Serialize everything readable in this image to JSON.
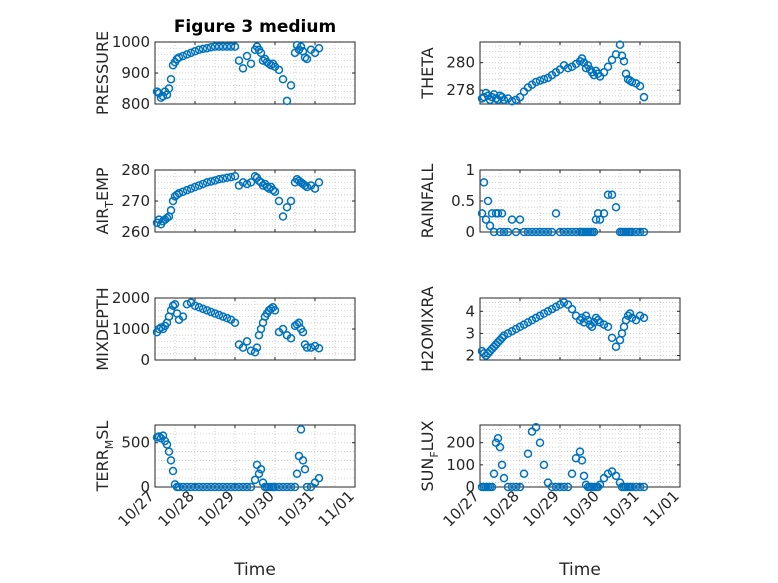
{
  "colors": {
    "marker": "#0072bd",
    "axis": "#262626",
    "grid": "#c8c8c8"
  },
  "chart_data": [
    {
      "type": "scatter",
      "title": "Figure 3 medium",
      "ylabel": "PRESSURE",
      "xlabel": "",
      "xlim": [
        0,
        5
      ],
      "ylim": [
        800,
        1000
      ],
      "yticks": [
        800,
        900,
        1000
      ],
      "xticks": [],
      "x": [
        0.05,
        0.1,
        0.15,
        0.2,
        0.25,
        0.3,
        0.35,
        0.4,
        0.45,
        0.5,
        0.55,
        0.6,
        0.7,
        0.8,
        0.9,
        1.0,
        1.1,
        1.2,
        1.3,
        1.4,
        1.5,
        1.6,
        1.7,
        1.8,
        1.9,
        2.0,
        2.1,
        2.2,
        2.3,
        2.4,
        2.5,
        2.55,
        2.6,
        2.65,
        2.7,
        2.75,
        2.8,
        2.85,
        2.9,
        2.95,
        3.0,
        3.1,
        3.2,
        3.3,
        3.4,
        3.5,
        3.55,
        3.6,
        3.65,
        3.7,
        3.75,
        3.8,
        3.9,
        4.0,
        4.1
      ],
      "y": [
        840,
        835,
        820,
        825,
        840,
        830,
        850,
        880,
        925,
        935,
        945,
        950,
        955,
        960,
        965,
        970,
        975,
        978,
        980,
        983,
        985,
        985,
        985,
        985,
        985,
        985,
        940,
        915,
        955,
        930,
        975,
        985,
        975,
        965,
        940,
        945,
        935,
        930,
        925,
        930,
        920,
        910,
        880,
        810,
        860,
        965,
        990,
        975,
        985,
        970,
        950,
        945,
        975,
        965,
        980
      ]
    },
    {
      "type": "scatter",
      "title": "",
      "ylabel": "THETA",
      "xlabel": "",
      "xlim": [
        0,
        5
      ],
      "ylim": [
        277,
        281.5
      ],
      "yticks": [
        278,
        280
      ],
      "xticks": [],
      "x": [
        0.05,
        0.1,
        0.15,
        0.2,
        0.25,
        0.3,
        0.35,
        0.4,
        0.45,
        0.5,
        0.55,
        0.6,
        0.7,
        0.8,
        0.9,
        1.0,
        1.1,
        1.2,
        1.3,
        1.4,
        1.5,
        1.6,
        1.7,
        1.8,
        1.9,
        2.0,
        2.1,
        2.2,
        2.3,
        2.4,
        2.5,
        2.55,
        2.6,
        2.65,
        2.7,
        2.75,
        2.8,
        2.85,
        2.9,
        2.95,
        3.0,
        3.1,
        3.2,
        3.3,
        3.4,
        3.5,
        3.55,
        3.6,
        3.65,
        3.7,
        3.75,
        3.8,
        3.9,
        4.0,
        4.1
      ],
      "y": [
        277.4,
        277.5,
        277.8,
        277.6,
        277.3,
        277.5,
        277.7,
        277.4,
        277.3,
        277.6,
        277.5,
        277.3,
        277.4,
        277.2,
        277.3,
        277.5,
        277.9,
        278.2,
        278.4,
        278.6,
        278.7,
        278.8,
        278.9,
        279.1,
        279.3,
        279.5,
        279.8,
        279.6,
        279.7,
        279.9,
        280.1,
        280.3,
        280.0,
        279.6,
        279.8,
        279.5,
        279.3,
        279.1,
        279.4,
        279.2,
        279.0,
        279.3,
        279.7,
        280.2,
        280.6,
        281.3,
        280.5,
        280.1,
        279.2,
        278.8,
        278.7,
        278.6,
        278.5,
        278.3,
        277.5
      ]
    },
    {
      "type": "scatter",
      "title": "",
      "ylabel": "AIR_TEMP",
      "xlabel": "",
      "xlim": [
        0,
        5
      ],
      "ylim": [
        260,
        280
      ],
      "yticks": [
        260,
        270,
        280
      ],
      "xticks": [],
      "x": [
        0.05,
        0.1,
        0.15,
        0.2,
        0.25,
        0.3,
        0.35,
        0.4,
        0.45,
        0.5,
        0.55,
        0.6,
        0.7,
        0.8,
        0.9,
        1.0,
        1.1,
        1.2,
        1.3,
        1.4,
        1.5,
        1.6,
        1.7,
        1.8,
        1.9,
        2.0,
        2.1,
        2.2,
        2.3,
        2.4,
        2.5,
        2.55,
        2.6,
        2.65,
        2.7,
        2.75,
        2.8,
        2.85,
        2.9,
        2.95,
        3.0,
        3.1,
        3.2,
        3.3,
        3.4,
        3.5,
        3.55,
        3.6,
        3.65,
        3.7,
        3.75,
        3.8,
        3.9,
        4.0,
        4.1
      ],
      "y": [
        263,
        264,
        262.5,
        263.5,
        264,
        264.5,
        265,
        267,
        270,
        271.5,
        272,
        272.5,
        273,
        273.5,
        274,
        274.5,
        275,
        275.5,
        276,
        276.3,
        276.6,
        277,
        277.2,
        277.5,
        277.7,
        278,
        275,
        276,
        275.5,
        276,
        278,
        277.5,
        276.5,
        276,
        275,
        275.5,
        274.5,
        274,
        274.5,
        273.5,
        273,
        270,
        265,
        268,
        270,
        276,
        277,
        276.5,
        276,
        275.5,
        275,
        274.5,
        275,
        274,
        276
      ]
    },
    {
      "type": "scatter",
      "title": "",
      "ylabel": "RAINFALL",
      "xlabel": "",
      "xlim": [
        0,
        5
      ],
      "ylim": [
        0,
        1
      ],
      "yticks": [
        0,
        0.5,
        1
      ],
      "xticks": [],
      "x": [
        0.05,
        0.1,
        0.15,
        0.2,
        0.25,
        0.3,
        0.35,
        0.4,
        0.45,
        0.5,
        0.55,
        0.6,
        0.7,
        0.8,
        0.9,
        1.0,
        1.1,
        1.2,
        1.3,
        1.4,
        1.5,
        1.6,
        1.7,
        1.8,
        1.9,
        2.0,
        2.1,
        2.2,
        2.3,
        2.4,
        2.5,
        2.55,
        2.6,
        2.65,
        2.7,
        2.75,
        2.8,
        2.85,
        2.9,
        2.95,
        3.0,
        3.1,
        3.2,
        3.3,
        3.4,
        3.5,
        3.55,
        3.6,
        3.65,
        3.7,
        3.75,
        3.8,
        3.9,
        4.0,
        4.1
      ],
      "y": [
        0.3,
        0.8,
        0.2,
        0.5,
        0.1,
        0.3,
        0,
        0.3,
        0.3,
        0,
        0.3,
        0,
        0,
        0.2,
        0,
        0.2,
        0,
        0,
        0,
        0,
        0,
        0,
        0,
        0,
        0.3,
        0,
        0,
        0,
        0,
        0,
        0,
        0,
        0,
        0,
        0,
        0,
        0,
        0,
        0.2,
        0.3,
        0.2,
        0.3,
        0.6,
        0.6,
        0.4,
        0,
        0,
        0,
        0,
        0,
        0,
        0,
        0,
        0,
        0
      ]
    },
    {
      "type": "scatter",
      "title": "",
      "ylabel": "MIXDEPTH",
      "xlabel": "",
      "xlim": [
        0,
        5
      ],
      "ylim": [
        0,
        2000
      ],
      "yticks": [
        0,
        1000,
        2000
      ],
      "xticks": [],
      "x": [
        0.05,
        0.1,
        0.15,
        0.2,
        0.25,
        0.3,
        0.35,
        0.4,
        0.45,
        0.5,
        0.55,
        0.6,
        0.7,
        0.8,
        0.9,
        1.0,
        1.1,
        1.2,
        1.3,
        1.4,
        1.5,
        1.6,
        1.7,
        1.8,
        1.9,
        2.0,
        2.1,
        2.2,
        2.3,
        2.4,
        2.5,
        2.55,
        2.6,
        2.65,
        2.7,
        2.75,
        2.8,
        2.85,
        2.9,
        2.95,
        3.0,
        3.1,
        3.2,
        3.3,
        3.4,
        3.5,
        3.55,
        3.6,
        3.65,
        3.7,
        3.75,
        3.8,
        3.9,
        4.0,
        4.1
      ],
      "y": [
        900,
        1000,
        1050,
        1000,
        1100,
        1200,
        1400,
        1600,
        1750,
        1800,
        1500,
        1300,
        1400,
        1800,
        1850,
        1750,
        1700,
        1650,
        1600,
        1550,
        1500,
        1450,
        1400,
        1350,
        1300,
        1200,
        500,
        400,
        600,
        300,
        250,
        400,
        800,
        1000,
        1200,
        1400,
        1500,
        1600,
        1650,
        1700,
        1600,
        900,
        1000,
        800,
        700,
        1100,
        1150,
        1200,
        1000,
        900,
        500,
        400,
        400,
        450,
        380
      ]
    },
    {
      "type": "scatter",
      "title": "",
      "ylabel": "H2OMIXRA",
      "xlabel": "",
      "xlim": [
        0,
        5
      ],
      "ylim": [
        1.8,
        4.6
      ],
      "yticks": [
        2,
        3,
        4
      ],
      "xticks": [],
      "x": [
        0.05,
        0.1,
        0.15,
        0.2,
        0.25,
        0.3,
        0.35,
        0.4,
        0.45,
        0.5,
        0.55,
        0.6,
        0.7,
        0.8,
        0.9,
        1.0,
        1.1,
        1.2,
        1.3,
        1.4,
        1.5,
        1.6,
        1.7,
        1.8,
        1.9,
        2.0,
        2.1,
        2.2,
        2.3,
        2.4,
        2.5,
        2.55,
        2.6,
        2.65,
        2.7,
        2.75,
        2.8,
        2.85,
        2.9,
        2.95,
        3.0,
        3.1,
        3.2,
        3.3,
        3.4,
        3.5,
        3.55,
        3.6,
        3.65,
        3.7,
        3.75,
        3.8,
        3.9,
        4.0,
        4.1
      ],
      "y": [
        2.2,
        2.1,
        2.0,
        2.1,
        2.2,
        2.3,
        2.4,
        2.5,
        2.6,
        2.7,
        2.8,
        2.9,
        3.0,
        3.1,
        3.2,
        3.3,
        3.4,
        3.5,
        3.6,
        3.7,
        3.8,
        3.9,
        4.0,
        4.1,
        4.2,
        4.3,
        4.4,
        4.3,
        4.1,
        3.8,
        3.6,
        3.7,
        3.5,
        3.8,
        3.6,
        3.4,
        3.3,
        3.5,
        3.7,
        3.6,
        3.5,
        3.4,
        3.3,
        2.8,
        2.4,
        2.7,
        3.0,
        3.3,
        3.6,
        3.8,
        3.9,
        3.7,
        3.6,
        3.8,
        3.7
      ]
    },
    {
      "type": "scatter",
      "title": "",
      "ylabel": "TERR_MSL",
      "xlabel": "Time",
      "xlim": [
        0,
        5
      ],
      "ylim": [
        0,
        700
      ],
      "yticks": [
        0,
        500
      ],
      "xticks": [
        "10/27",
        "10/28",
        "10/29",
        "10/30",
        "10/31",
        "11/01"
      ],
      "x": [
        0.05,
        0.1,
        0.15,
        0.2,
        0.25,
        0.3,
        0.35,
        0.4,
        0.45,
        0.5,
        0.55,
        0.6,
        0.7,
        0.8,
        0.9,
        1.0,
        1.1,
        1.2,
        1.3,
        1.4,
        1.5,
        1.6,
        1.7,
        1.8,
        1.9,
        2.0,
        2.1,
        2.2,
        2.3,
        2.4,
        2.5,
        2.55,
        2.6,
        2.65,
        2.7,
        2.75,
        2.8,
        2.85,
        2.9,
        2.95,
        3.0,
        3.1,
        3.2,
        3.3,
        3.4,
        3.5,
        3.55,
        3.6,
        3.65,
        3.7,
        3.75,
        3.8,
        3.9,
        4.0,
        4.1
      ],
      "y": [
        560,
        570,
        550,
        580,
        520,
        480,
        400,
        300,
        180,
        30,
        0,
        0,
        0,
        0,
        0,
        0,
        0,
        0,
        0,
        0,
        0,
        0,
        0,
        0,
        0,
        0,
        0,
        0,
        0,
        0,
        80,
        250,
        150,
        200,
        50,
        0,
        0,
        0,
        0,
        0,
        0,
        0,
        0,
        0,
        0,
        0,
        150,
        350,
        650,
        300,
        200,
        0,
        0,
        50,
        100
      ]
    },
    {
      "type": "scatter",
      "title": "",
      "ylabel": "SUN_FLUX",
      "xlabel": "Time",
      "xlim": [
        0,
        5
      ],
      "ylim": [
        0,
        280
      ],
      "yticks": [
        0,
        100,
        200
      ],
      "xticks": [
        "10/27",
        "10/28",
        "10/29",
        "10/30",
        "10/31",
        "11/01"
      ],
      "x": [
        0.05,
        0.1,
        0.15,
        0.2,
        0.25,
        0.3,
        0.35,
        0.4,
        0.45,
        0.5,
        0.55,
        0.6,
        0.7,
        0.8,
        0.9,
        1.0,
        1.1,
        1.2,
        1.3,
        1.4,
        1.5,
        1.6,
        1.7,
        1.8,
        1.9,
        2.0,
        2.1,
        2.2,
        2.3,
        2.4,
        2.5,
        2.55,
        2.6,
        2.65,
        2.7,
        2.75,
        2.8,
        2.85,
        2.9,
        2.95,
        3.0,
        3.1,
        3.2,
        3.3,
        3.4,
        3.5,
        3.55,
        3.6,
        3.65,
        3.7,
        3.75,
        3.8,
        3.9,
        4.0,
        4.1
      ],
      "y": [
        0,
        0,
        0,
        0,
        0,
        0,
        60,
        200,
        220,
        180,
        100,
        40,
        0,
        0,
        0,
        0,
        60,
        150,
        250,
        270,
        200,
        100,
        20,
        0,
        0,
        0,
        0,
        0,
        60,
        130,
        160,
        120,
        50,
        10,
        0,
        0,
        0,
        0,
        0,
        0,
        10,
        40,
        60,
        70,
        50,
        20,
        0,
        0,
        0,
        0,
        0,
        0,
        0,
        0,
        0
      ]
    }
  ]
}
